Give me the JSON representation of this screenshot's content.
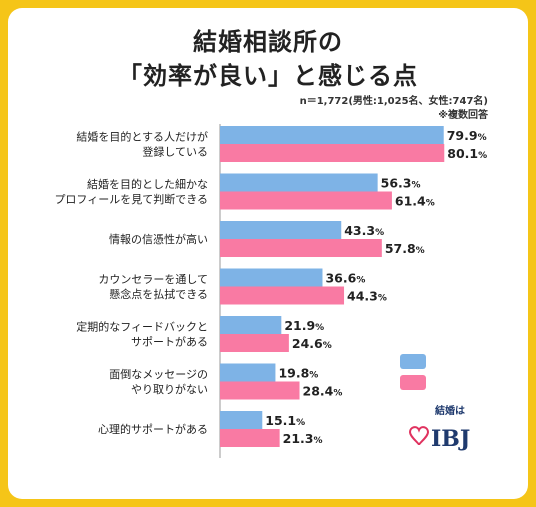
{
  "title_line1": "結婚相談所の",
  "title_line2": "「効率が良い」と感じる点",
  "note_sample": "n＝1,772(男性:1,025名、女性:747名)",
  "note_multi": "※複数回答",
  "logo": {
    "small_text": "結婚は",
    "brand": "IBJ"
  },
  "colors": {
    "male": "#7EB3E6",
    "female": "#F97AA3",
    "page_bg": "#F5C518"
  },
  "chart_data": {
    "type": "bar",
    "orientation": "horizontal",
    "categories": [
      [
        "結婚を目的とする人だけが",
        "登録している"
      ],
      [
        "結婚を目的とした細かな",
        "プロフィールを見て判断できる"
      ],
      [
        "情報の信憑性が高い"
      ],
      [
        "カウンセラーを通して",
        "懸念点を払拭できる"
      ],
      [
        "定期的なフィードバックと",
        "サポートがある"
      ],
      [
        "面倒なメッセージの",
        "やり取りがない"
      ],
      [
        "心理的サポートがある"
      ]
    ],
    "series": [
      {
        "values": [
          79.9,
          56.3,
          43.3,
          36.6,
          21.9,
          19.8,
          15.1
        ],
        "color": "#7EB3E6"
      },
      {
        "values": [
          80.1,
          61.4,
          57.8,
          44.3,
          24.6,
          28.4,
          21.3
        ],
        "color": "#F97AA3"
      }
    ],
    "unit": "%",
    "xlim": [
      0,
      100
    ],
    "legend": "right"
  }
}
